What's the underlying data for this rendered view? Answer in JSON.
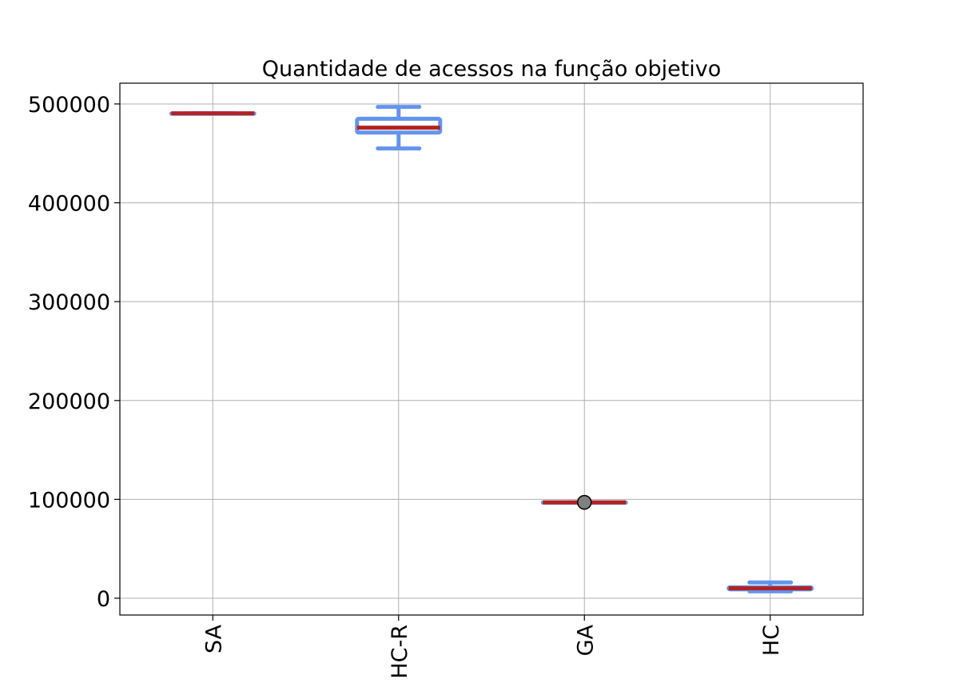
{
  "chart_data": {
    "type": "box",
    "title": "Quantidade de acessos na função objetivo",
    "xlabel": "",
    "ylabel": "",
    "categories": [
      "SA",
      "HC-R",
      "GA",
      "HC"
    ],
    "yticks": [
      0,
      100000,
      200000,
      300000,
      400000,
      500000
    ],
    "ylim": [
      -17000,
      521000
    ],
    "grid": true,
    "boxes": [
      {
        "category": "SA",
        "whisker_low": 490500,
        "q1": 490500,
        "median": 490500,
        "q3": 490500,
        "whisker_high": 490500,
        "outliers": []
      },
      {
        "category": "HC-R",
        "whisker_low": 455000,
        "q1": 471000,
        "median": 476000,
        "q3": 485000,
        "whisker_high": 497000,
        "outliers": []
      },
      {
        "category": "GA",
        "whisker_low": 97000,
        "q1": 97000,
        "median": 97000,
        "q3": 97000,
        "whisker_high": 97000,
        "outliers": [
          97000
        ]
      },
      {
        "category": "HC",
        "whisker_low": 7000,
        "q1": 9000,
        "median": 10000,
        "q3": 11000,
        "whisker_high": 16000,
        "outliers": []
      }
    ],
    "colors": {
      "box": "#6495ed",
      "median": "#b22222",
      "outlier_fill": "#808080",
      "outlier_edge": "#000000",
      "grid": "#b0b0b0"
    }
  }
}
